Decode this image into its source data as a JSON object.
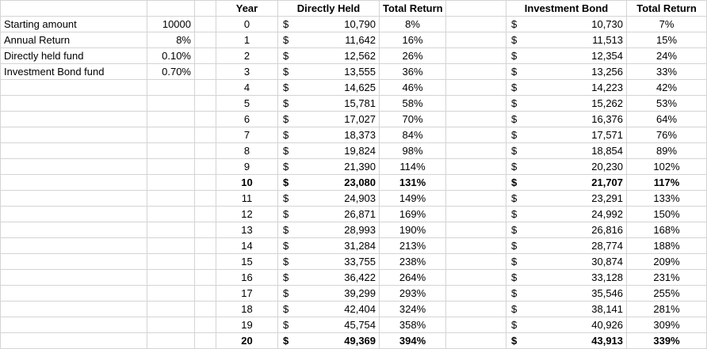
{
  "sheet": {
    "header": {
      "year": "Year",
      "directly_held": "Directly Held",
      "total_return_direct": "Total Return",
      "investment_bond": "Investment Bond",
      "total_return_bond": "Total Return"
    },
    "inputs": [
      {
        "label": "Starting amount",
        "value": "10000"
      },
      {
        "label": "Annual Return",
        "value": "8%"
      },
      {
        "label": "Directly held fund",
        "value": "0.10%"
      },
      {
        "label": "Investment Bond fund",
        "value": "0.70%"
      }
    ],
    "rows": [
      [
        0,
        "$",
        "10,790",
        "8%",
        "$",
        "10,730",
        "7%"
      ],
      [
        1,
        "$",
        "11,642",
        "16%",
        "$",
        "11,513",
        "15%"
      ],
      [
        2,
        "$",
        "12,562",
        "26%",
        "$",
        "12,354",
        "24%"
      ],
      [
        3,
        "$",
        "13,555",
        "36%",
        "$",
        "13,256",
        "33%"
      ],
      [
        4,
        "$",
        "14,625",
        "46%",
        "$",
        "14,223",
        "42%"
      ],
      [
        5,
        "$",
        "15,781",
        "58%",
        "$",
        "15,262",
        "53%"
      ],
      [
        6,
        "$",
        "17,027",
        "70%",
        "$",
        "16,376",
        "64%"
      ],
      [
        7,
        "$",
        "18,373",
        "84%",
        "$",
        "17,571",
        "76%"
      ],
      [
        8,
        "$",
        "19,824",
        "98%",
        "$",
        "18,854",
        "89%"
      ],
      [
        9,
        "$",
        "21,390",
        "114%",
        "$",
        "20,230",
        "102%"
      ],
      [
        10,
        "$",
        "23,080",
        "131%",
        "$",
        "21,707",
        "117%"
      ],
      [
        11,
        "$",
        "24,903",
        "149%",
        "$",
        "23,291",
        "133%"
      ],
      [
        12,
        "$",
        "26,871",
        "169%",
        "$",
        "24,992",
        "150%"
      ],
      [
        13,
        "$",
        "28,993",
        "190%",
        "$",
        "26,816",
        "168%"
      ],
      [
        14,
        "$",
        "31,284",
        "213%",
        "$",
        "28,774",
        "188%"
      ],
      [
        15,
        "$",
        "33,755",
        "238%",
        "$",
        "30,874",
        "209%"
      ],
      [
        16,
        "$",
        "36,422",
        "264%",
        "$",
        "33,128",
        "231%"
      ],
      [
        17,
        "$",
        "39,299",
        "293%",
        "$",
        "35,546",
        "255%"
      ],
      [
        18,
        "$",
        "42,404",
        "324%",
        "$",
        "38,141",
        "281%"
      ],
      [
        19,
        "$",
        "45,754",
        "358%",
        "$",
        "40,926",
        "309%"
      ],
      [
        20,
        "$",
        "49,369",
        "394%",
        "$",
        "43,913",
        "339%"
      ]
    ]
  }
}
